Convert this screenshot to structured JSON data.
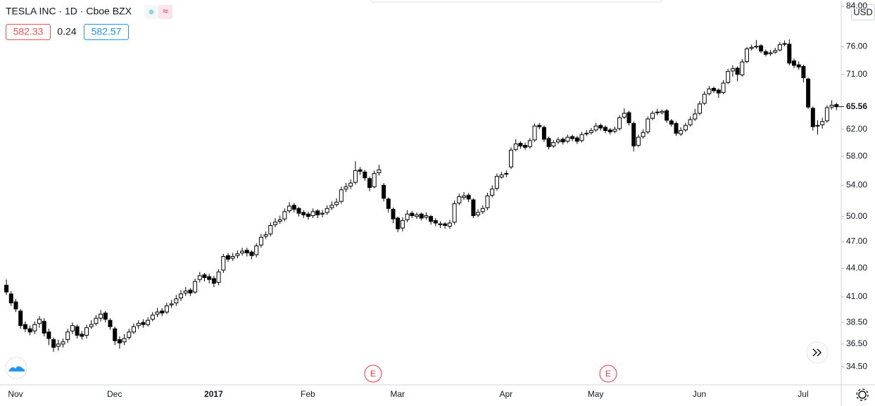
{
  "chart_data": {
    "type": "candlestick",
    "title": "TESLA INC · 1D · Cboe BZX",
    "bid": "582.33",
    "spread": "0.24",
    "ask": "582.57",
    "currency": "USD",
    "events": [
      "E",
      "E"
    ],
    "log_scale": true,
    "up_color": "#ffffff",
    "down_color": "#000000",
    "border_color": "#000000",
    "ylim": [
      33,
      85.3
    ],
    "yticks": [
      {
        "value": 34.5,
        "label": "34.50"
      },
      {
        "value": 36.5,
        "label": "36.50"
      },
      {
        "value": 38.5,
        "label": "38.50"
      },
      {
        "value": 41,
        "label": "41.00"
      },
      {
        "value": 44,
        "label": "44.00"
      },
      {
        "value": 47,
        "label": "47.00"
      },
      {
        "value": 50,
        "label": "50.00"
      },
      {
        "value": 54,
        "label": "54.00"
      },
      {
        "value": 58,
        "label": "58.00"
      },
      {
        "value": 62,
        "label": "62.00"
      },
      {
        "value": 71,
        "label": "71.00"
      },
      {
        "value": 76,
        "label": "76.00"
      },
      {
        "value": 84,
        "label": "84.00"
      }
    ],
    "last_price_label": "65.56",
    "categories": [
      null,
      null,
      "Nov",
      null,
      null,
      null,
      null,
      null,
      null,
      null,
      null,
      null,
      null,
      null,
      null,
      null,
      null,
      null,
      null,
      null,
      null,
      null,
      null,
      "Dec",
      null,
      null,
      null,
      null,
      null,
      null,
      null,
      null,
      null,
      null,
      null,
      null,
      null,
      null,
      null,
      null,
      null,
      null,
      null,
      null,
      "2017",
      null,
      null,
      null,
      null,
      null,
      null,
      null,
      null,
      null,
      null,
      null,
      null,
      null,
      null,
      null,
      null,
      null,
      null,
      null,
      "Feb",
      null,
      null,
      null,
      null,
      null,
      null,
      null,
      null,
      null,
      null,
      null,
      null,
      null,
      null,
      null,
      null,
      null,
      null,
      "Mar",
      null,
      null,
      null,
      null,
      null,
      null,
      null,
      null,
      null,
      null,
      null,
      null,
      null,
      null,
      null,
      null,
      null,
      null,
      null,
      null,
      null,
      null,
      "Apr",
      null,
      null,
      null,
      null,
      null,
      null,
      null,
      null,
      null,
      null,
      null,
      null,
      null,
      null,
      null,
      null,
      null,
      null,
      "May",
      null,
      null,
      null,
      null,
      null,
      null,
      null,
      null,
      null,
      null,
      null,
      null,
      null,
      null,
      null,
      null,
      null,
      null,
      null,
      null,
      null,
      "Jun",
      null,
      null,
      null,
      null,
      null,
      null,
      null,
      null,
      null,
      null,
      null,
      null,
      null,
      null,
      null,
      null,
      null,
      null,
      null,
      null,
      null,
      "Jul",
      null,
      null,
      null,
      null,
      null,
      null,
      null
    ],
    "open": [
      42.2,
      41.3,
      40.5,
      39.6,
      38.3,
      37.9,
      37.7,
      38.4,
      38.6,
      37.6,
      36.9,
      36.3,
      36.5,
      36.9,
      37.7,
      38.1,
      37.4,
      37.3,
      38.1,
      38.4,
      38.9,
      39.4,
      38.7,
      37.9,
      36.9,
      36.7,
      37.1,
      37.6,
      38.2,
      38.5,
      38.3,
      38.8,
      39.3,
      39.6,
      39.5,
      40.2,
      40.4,
      40.9,
      41.4,
      41.7,
      41.5,
      42.8,
      43.3,
      43.1,
      42.9,
      42.5,
      43.8,
      45.4,
      45.1,
      45.4,
      45.7,
      46.0,
      45.8,
      45.5,
      46.6,
      47.6,
      47.9,
      49.0,
      49.4,
      49.7,
      50.7,
      51.4,
      51.0,
      50.5,
      50.3,
      50.1,
      50.7,
      50.3,
      50.5,
      51.1,
      51.5,
      51.9,
      53.5,
      53.9,
      54.4,
      56.1,
      55.8,
      54.9,
      53.8,
      55.7,
      54.0,
      52.2,
      50.9,
      49.8,
      48.6,
      49.6,
      50.4,
      50.0,
      50.3,
      49.9,
      50.0,
      49.5,
      49.1,
      49.1,
      48.8,
      49.3,
      51.7,
      52.4,
      52.7,
      52.1,
      50.2,
      50.6,
      51.1,
      52.7,
      53.6,
      55.1,
      55.5,
      56.5,
      59.0,
      59.9,
      59.6,
      59.4,
      60.4,
      62.6,
      62.3,
      60.6,
      59.5,
      60.1,
      60.5,
      60.2,
      60.9,
      60.7,
      60.3,
      61.3,
      61.5,
      61.9,
      62.6,
      62.3,
      61.9,
      61.7,
      62.1,
      63.9,
      64.6,
      62.9,
      59.6,
      60.9,
      61.6,
      63.7,
      64.6,
      64.6,
      64.9,
      63.3,
      62.9,
      61.3,
      61.9,
      62.7,
      63.6,
      64.5,
      66.1,
      67.7,
      68.6,
      68.3,
      67.9,
      69.6,
      71.6,
      72.1,
      70.9,
      73.3,
      75.7,
      76.0,
      76.2,
      75.1,
      74.7,
      75.0,
      75.4,
      76.5,
      76.5,
      73.4,
      72.7,
      72.4,
      70.2,
      65.3,
      62.5,
      62.7,
      63.3,
      65.5,
      65.9
    ],
    "high": [
      42.8,
      41.6,
      40.8,
      39.8,
      38.6,
      38.2,
      38.6,
      39.1,
      38.9,
      37.9,
      37.1,
      36.9,
      37.0,
      37.9,
      38.5,
      38.3,
      37.7,
      38.3,
      38.7,
      39.2,
      39.7,
      39.6,
      38.9,
      38.1,
      37.2,
      37.4,
      37.9,
      38.4,
      38.7,
      38.8,
      39.0,
      39.5,
      39.9,
      39.9,
      40.4,
      40.7,
      41.2,
      41.7,
      42.0,
      41.9,
      42.9,
      43.6,
      43.5,
      43.4,
      43.2,
      43.9,
      45.6,
      45.7,
      45.7,
      46.0,
      46.3,
      46.3,
      46.0,
      46.8,
      47.9,
      48.2,
      49.3,
      49.8,
      50.1,
      51.0,
      51.8,
      51.7,
      51.2,
      50.8,
      50.6,
      51.0,
      50.9,
      50.8,
      51.4,
      51.9,
      52.3,
      53.8,
      54.3,
      54.8,
      57.3,
      56.5,
      56.1,
      55.2,
      56.0,
      56.8,
      54.3,
      52.4,
      51.1,
      50.0,
      49.9,
      50.8,
      50.7,
      50.5,
      50.5,
      50.5,
      50.2,
      49.8,
      49.4,
      49.3,
      49.6,
      52.0,
      52.9,
      53.1,
      53.0,
      52.3,
      50.9,
      51.4,
      53.0,
      54.0,
      55.6,
      55.8,
      56.0,
      59.3,
      60.5,
      60.2,
      60.0,
      60.7,
      62.9,
      63.0,
      62.6,
      60.9,
      60.4,
      60.8,
      60.8,
      61.2,
      61.2,
      61.0,
      61.6,
      61.9,
      62.2,
      63.0,
      62.9,
      62.6,
      62.2,
      62.4,
      64.2,
      65.3,
      64.9,
      63.2,
      61.2,
      62.0,
      64.0,
      64.9,
      65.2,
      65.1,
      65.2,
      63.6,
      63.2,
      62.3,
      63.0,
      64.0,
      65.2,
      66.5,
      68.1,
      69.0,
      68.9,
      68.6,
      70.0,
      72.0,
      72.6,
      72.4,
      73.7,
      76.0,
      76.4,
      77.3,
      76.5,
      75.5,
      75.4,
      75.8,
      76.9,
      77.2,
      77.4,
      73.8,
      73.3,
      72.7,
      70.4,
      65.6,
      63.4,
      63.8,
      65.8,
      66.6,
      66.2
    ],
    "low": [
      41.2,
      40.1,
      39.5,
      37.9,
      37.6,
      37.3,
      37.4,
      38.0,
      37.2,
      36.4,
      35.8,
      35.9,
      36.2,
      36.6,
      37.4,
      37.0,
      36.9,
      37.0,
      37.9,
      38.2,
      38.6,
      38.5,
      37.8,
      36.4,
      36.1,
      36.4,
      36.9,
      37.4,
      37.9,
      38.0,
      38.1,
      38.6,
      39.0,
      39.1,
      39.3,
      39.9,
      40.1,
      40.6,
      41.1,
      41.1,
      41.3,
      42.5,
      42.6,
      42.4,
      42.0,
      42.2,
      43.5,
      44.7,
      44.8,
      45.1,
      45.4,
      45.3,
      45.0,
      45.2,
      46.3,
      47.3,
      47.6,
      48.7,
      49.1,
      49.4,
      50.4,
      50.5,
      50.0,
      49.8,
      49.6,
      49.8,
      49.8,
      49.9,
      50.2,
      50.8,
      51.2,
      51.6,
      53.1,
      53.5,
      54.1,
      55.4,
      54.6,
      53.2,
      53.6,
      55.3,
      51.9,
      50.5,
      49.2,
      48.1,
      48.2,
      49.3,
      49.8,
      49.7,
      49.5,
      49.6,
      49.0,
      48.8,
      48.6,
      48.5,
      48.5,
      49.0,
      51.4,
      52.1,
      51.8,
      49.8,
      49.9,
      50.3,
      50.8,
      52.4,
      53.3,
      54.9,
      55.1,
      56.2,
      58.7,
      59.1,
      58.9,
      59.1,
      60.1,
      62.0,
      60.1,
      59.0,
      59.2,
      59.8,
      59.7,
      59.9,
      60.2,
      59.8,
      60.0,
      61.0,
      61.2,
      61.6,
      61.8,
      61.4,
      61.2,
      61.4,
      61.8,
      63.6,
      62.6,
      58.7,
      59.3,
      60.6,
      61.3,
      63.4,
      64.2,
      64.3,
      63.0,
      62.4,
      61.0,
      61.0,
      61.6,
      62.4,
      63.3,
      64.2,
      65.8,
      67.4,
      67.8,
      67.0,
      67.6,
      69.3,
      70.6,
      69.8,
      70.6,
      73.0,
      75.3,
      75.6,
      74.8,
      74.2,
      74.3,
      74.7,
      75.1,
      76.1,
      72.6,
      72.1,
      71.8,
      69.6,
      65.2,
      61.8,
      61.2,
      62.1,
      63.0,
      65.1,
      65.0
    ],
    "close": [
      41.5,
      40.4,
      39.8,
      38.2,
      37.9,
      37.6,
      38.3,
      38.8,
      37.5,
      37.0,
      36.2,
      36.5,
      36.7,
      37.6,
      38.2,
      37.3,
      37.2,
      38.0,
      38.3,
      38.9,
      39.3,
      38.8,
      38.1,
      36.8,
      36.6,
      37.0,
      37.6,
      38.1,
      38.4,
      38.3,
      38.7,
      39.2,
      39.5,
      39.4,
      40.1,
      40.3,
      40.8,
      41.3,
      41.6,
      41.4,
      42.6,
      43.2,
      43.0,
      42.8,
      42.4,
      43.6,
      45.3,
      45.0,
      45.3,
      45.6,
      45.9,
      45.7,
      45.4,
      46.5,
      47.5,
      47.8,
      48.9,
      49.3,
      49.6,
      50.6,
      51.3,
      50.9,
      50.4,
      50.2,
      50.0,
      50.6,
      50.2,
      50.4,
      51.0,
      51.4,
      51.8,
      53.4,
      53.8,
      54.3,
      56.0,
      55.9,
      55.0,
      53.7,
      55.6,
      56.1,
      52.3,
      51.0,
      49.7,
      48.5,
      49.5,
      50.3,
      50.1,
      50.2,
      49.8,
      50.1,
      49.4,
      49.2,
      49.0,
      48.9,
      49.2,
      51.6,
      52.5,
      52.6,
      52.2,
      50.1,
      50.5,
      51.0,
      52.6,
      53.5,
      55.2,
      55.4,
      55.6,
      58.9,
      59.8,
      59.5,
      59.3,
      60.3,
      62.5,
      62.4,
      60.5,
      59.4,
      60.0,
      60.4,
      60.1,
      60.8,
      60.6,
      60.2,
      61.2,
      61.4,
      61.8,
      62.5,
      62.2,
      61.8,
      61.6,
      62.0,
      63.8,
      64.5,
      63.0,
      59.5,
      60.8,
      61.5,
      63.6,
      64.5,
      64.7,
      64.8,
      63.4,
      62.8,
      61.4,
      61.8,
      62.6,
      63.5,
      64.4,
      66.0,
      67.6,
      68.5,
      68.2,
      67.8,
      69.5,
      71.5,
      72.0,
      71.0,
      73.2,
      75.6,
      75.9,
      76.1,
      75.2,
      74.6,
      74.9,
      75.3,
      76.4,
      76.6,
      73.0,
      72.6,
      72.3,
      70.4,
      65.5,
      62.4,
      62.6,
      63.2,
      65.4,
      65.8,
      65.56
    ]
  }
}
